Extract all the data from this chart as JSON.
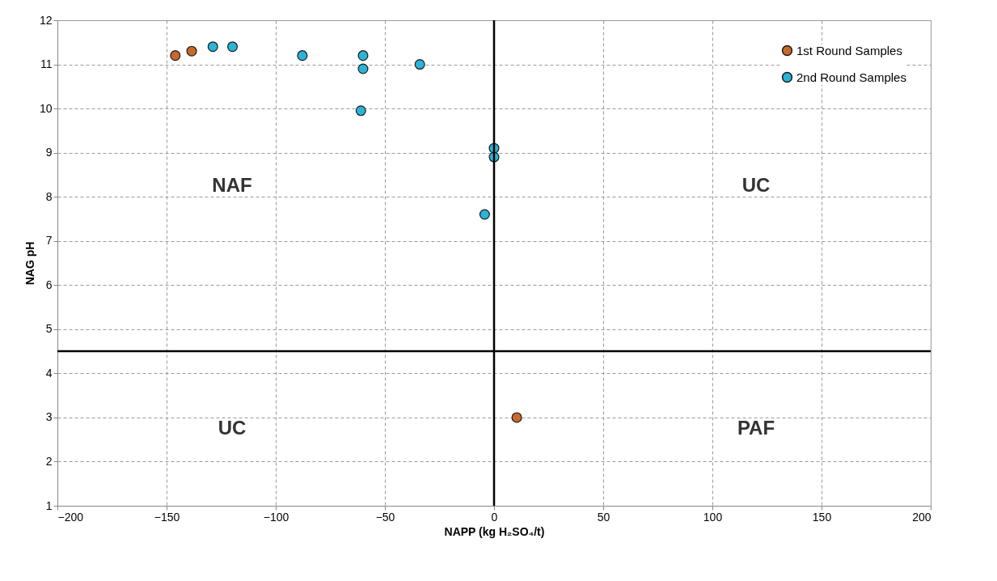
{
  "chart_data": {
    "type": "scatter",
    "xlabel": "NAPP (kg H₂SO₄/t)",
    "ylabel": "NAG pH",
    "xlim": [
      -200,
      200
    ],
    "xticks": [
      -200,
      -150,
      -100,
      -50,
      0,
      50,
      100,
      150,
      200
    ],
    "ylim": [
      1,
      12
    ],
    "yticks": [
      1,
      2,
      3,
      4,
      5,
      6,
      7,
      8,
      9,
      10,
      11,
      12
    ],
    "grid": true,
    "legend": "top right",
    "marker": "circle",
    "series": [
      {
        "name": "1st Round Samples",
        "color": "#c8692c",
        "x": [
          -146,
          -138.5,
          10.4
        ],
        "values": [
          11.2,
          11.3,
          3.0
        ]
      },
      {
        "name": "2nd Round Samples",
        "color": "#2bb3d8",
        "x": [
          -128.8,
          -119.8,
          -87.8,
          -60,
          -60,
          -34,
          -61,
          0,
          0,
          -4.3
        ],
        "values": [
          11.4,
          11.4,
          11.2,
          11.2,
          10.9,
          11.0,
          9.95,
          9.1,
          8.9,
          7.6
        ]
      }
    ],
    "ref_lines": [
      {
        "axis": "x",
        "value": 0,
        "color": "#000000"
      },
      {
        "axis": "y",
        "value": 4.5,
        "color": "#000000"
      }
    ],
    "annotations": [
      "NAF",
      "UC",
      "UC",
      "PAF"
    ]
  }
}
